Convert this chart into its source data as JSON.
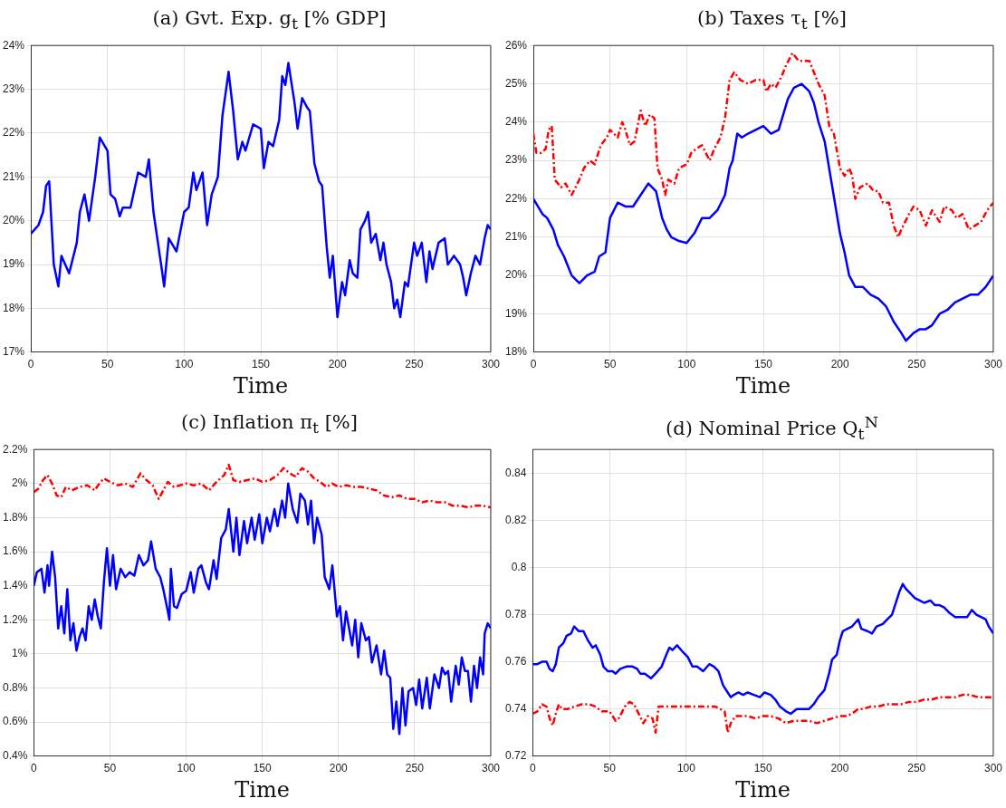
{
  "chart_data": [
    {
      "type": "line",
      "title": "(a) Gvt. Exp. g$_{t}$ [% GDP]",
      "xlabel": "Time",
      "xlim": [
        0,
        300
      ],
      "xticks": [
        0,
        50,
        100,
        150,
        200,
        250,
        300
      ],
      "ylim": [
        17,
        24
      ],
      "yticks": [
        {
          "value": 17,
          "label": "17%"
        },
        {
          "value": 18,
          "label": "18%"
        },
        {
          "value": 19,
          "label": "19%"
        },
        {
          "value": 20,
          "label": "20%"
        },
        {
          "value": 21,
          "label": "21%"
        },
        {
          "value": 22,
          "label": "22%"
        },
        {
          "value": 23,
          "label": "23%"
        },
        {
          "value": 24,
          "label": "24%"
        }
      ],
      "grid": true,
      "legend": false,
      "marker": "none",
      "series": [
        {
          "color": "#0000ff",
          "line_style": "solid",
          "x": [
            0,
            5,
            8,
            10,
            12,
            15,
            18,
            20,
            25,
            30,
            32,
            35,
            38,
            42,
            45,
            50,
            52,
            55,
            58,
            60,
            65,
            70,
            75,
            77,
            80,
            85,
            87,
            90,
            95,
            100,
            103,
            106,
            108,
            112,
            115,
            118,
            122,
            125,
            129,
            132,
            135,
            138,
            140,
            145,
            150,
            152,
            155,
            158,
            162,
            164,
            166,
            168,
            172,
            174,
            177,
            180,
            182,
            185,
            188,
            190,
            193,
            195,
            197,
            200,
            203,
            205,
            208,
            210,
            213,
            215,
            218,
            220,
            222,
            225,
            228,
            230,
            232,
            235,
            237,
            239,
            241,
            244,
            246,
            250,
            252,
            255,
            258,
            260,
            262,
            266,
            270,
            272,
            276,
            280,
            282,
            284,
            287,
            290,
            293,
            296,
            298,
            300
          ],
          "values": [
            19.7,
            19.9,
            20.2,
            20.8,
            20.9,
            19.0,
            18.5,
            19.2,
            18.8,
            19.5,
            20.2,
            20.6,
            20.0,
            21.0,
            21.9,
            21.6,
            20.6,
            20.5,
            20.1,
            20.3,
            20.3,
            21.1,
            21.0,
            21.4,
            20.2,
            19.0,
            18.5,
            19.6,
            19.3,
            20.2,
            20.3,
            21.1,
            20.7,
            21.1,
            19.9,
            20.6,
            21.0,
            22.4,
            23.4,
            22.5,
            21.4,
            21.8,
            21.6,
            22.2,
            22.1,
            21.2,
            21.8,
            21.7,
            22.3,
            23.3,
            23.1,
            23.6,
            22.7,
            22.1,
            22.8,
            22.6,
            22.5,
            21.3,
            20.9,
            20.8,
            19.4,
            18.7,
            19.2,
            17.8,
            18.6,
            18.3,
            19.1,
            18.8,
            18.7,
            19.8,
            20.0,
            20.2,
            19.5,
            19.7,
            19.1,
            19.5,
            19.0,
            18.6,
            18.0,
            18.2,
            17.8,
            18.6,
            18.5,
            19.5,
            19.2,
            19.5,
            18.6,
            19.3,
            18.9,
            19.5,
            19.6,
            19.0,
            19.2,
            19.0,
            18.7,
            18.3,
            18.8,
            19.2,
            19.0,
            19.6,
            19.9,
            19.8
          ]
        }
      ]
    },
    {
      "type": "line",
      "title": "(b) Taxes τ$_{t}$ [%]",
      "xlabel": "Time",
      "xlim": [
        0,
        300
      ],
      "xticks": [
        0,
        50,
        100,
        150,
        200,
        250,
        300
      ],
      "ylim": [
        18,
        26
      ],
      "yticks": [
        {
          "value": 18,
          "label": "18%"
        },
        {
          "value": 19,
          "label": "19%"
        },
        {
          "value": 20,
          "label": "20%"
        },
        {
          "value": 21,
          "label": "21%"
        },
        {
          "value": 22,
          "label": "22%"
        },
        {
          "value": 23,
          "label": "23%"
        },
        {
          "value": 24,
          "label": "24%"
        },
        {
          "value": 25,
          "label": "25%"
        },
        {
          "value": 26,
          "label": "26%"
        }
      ],
      "grid": true,
      "legend": false,
      "marker": "none",
      "series": [
        {
          "color": "#0000ff",
          "line_style": "solid",
          "x": [
            0,
            3,
            6,
            9,
            13,
            16,
            20,
            22,
            25,
            30,
            35,
            40,
            43,
            47,
            50,
            55,
            60,
            65,
            70,
            75,
            80,
            84,
            87,
            90,
            95,
            100,
            105,
            110,
            115,
            120,
            125,
            128,
            130,
            133,
            136,
            140,
            145,
            150,
            155,
            160,
            163,
            166,
            170,
            175,
            180,
            183,
            186,
            190,
            195,
            200,
            203,
            206,
            210,
            215,
            220,
            225,
            230,
            235,
            240,
            243,
            248,
            252,
            256,
            260,
            265,
            270,
            275,
            280,
            285,
            290,
            295,
            300
          ],
          "values": [
            22.0,
            21.8,
            21.6,
            21.5,
            21.2,
            20.8,
            20.5,
            20.3,
            20.0,
            19.8,
            20.0,
            20.1,
            20.5,
            20.6,
            21.5,
            21.9,
            21.8,
            21.8,
            22.1,
            22.4,
            22.2,
            21.5,
            21.2,
            21.0,
            20.9,
            20.85,
            21.1,
            21.5,
            21.5,
            21.7,
            22.1,
            22.8,
            23.0,
            23.7,
            23.6,
            23.7,
            23.8,
            23.9,
            23.7,
            23.8,
            24.2,
            24.6,
            24.9,
            25.0,
            24.8,
            24.5,
            24.0,
            23.5,
            22.3,
            21.1,
            20.6,
            20.0,
            19.7,
            19.7,
            19.5,
            19.4,
            19.2,
            18.8,
            18.5,
            18.3,
            18.5,
            18.6,
            18.6,
            18.7,
            19.0,
            19.1,
            19.3,
            19.4,
            19.5,
            19.5,
            19.7,
            20.0
          ]
        },
        {
          "color": "#ff0000",
          "line_style": "dashed",
          "x": [
            0,
            2,
            5,
            8,
            10,
            12,
            14,
            18,
            21,
            25,
            30,
            33,
            37,
            40,
            44,
            48,
            50,
            55,
            58,
            60,
            63,
            66,
            70,
            73,
            76,
            79,
            81,
            84,
            86,
            88,
            92,
            95,
            100,
            103,
            106,
            110,
            115,
            118,
            122,
            125,
            128,
            131,
            135,
            140,
            145,
            150,
            152,
            155,
            158,
            162,
            165,
            169,
            173,
            176,
            180,
            183,
            186,
            190,
            193,
            196,
            200,
            203,
            206,
            208,
            210,
            213,
            218,
            222,
            225,
            228,
            232,
            235,
            238,
            240,
            245,
            248,
            252,
            256,
            260,
            265,
            268,
            273,
            276,
            280,
            284,
            288,
            292,
            296,
            300
          ],
          "values": [
            23.7,
            23.2,
            23.2,
            23.3,
            23.8,
            23.9,
            22.5,
            22.3,
            22.4,
            22.1,
            22.5,
            22.8,
            23.0,
            22.9,
            23.4,
            23.6,
            23.8,
            23.6,
            24.0,
            23.8,
            23.4,
            23.5,
            24.3,
            23.9,
            24.2,
            24.1,
            22.8,
            22.5,
            22.1,
            22.5,
            22.4,
            22.8,
            22.9,
            23.2,
            23.3,
            23.4,
            23.0,
            23.3,
            23.6,
            24.1,
            25.1,
            25.3,
            25.1,
            25.0,
            25.1,
            25.1,
            24.8,
            25.0,
            24.9,
            25.2,
            25.5,
            25.8,
            25.6,
            25.6,
            25.6,
            25.3,
            25.0,
            24.7,
            23.9,
            23.7,
            22.8,
            22.6,
            22.8,
            22.6,
            22.0,
            22.3,
            22.4,
            22.2,
            22.2,
            21.9,
            21.9,
            21.3,
            21.0,
            21.2,
            21.6,
            21.8,
            21.7,
            21.3,
            21.7,
            21.4,
            21.8,
            21.7,
            21.5,
            21.6,
            21.2,
            21.3,
            21.4,
            21.7,
            21.9
          ]
        }
      ]
    },
    {
      "type": "line",
      "title": "(c) Inflation π$_{t}$ [%]",
      "xlabel": "Time",
      "xlim": [
        0,
        300
      ],
      "xticks": [
        0,
        50,
        100,
        150,
        200,
        250,
        300
      ],
      "ylim": [
        0.4,
        2.2
      ],
      "yticks": [
        {
          "value": 0.4,
          "label": "0.4%"
        },
        {
          "value": 0.6,
          "label": "0.6%"
        },
        {
          "value": 0.8,
          "label": "0.8%"
        },
        {
          "value": 1,
          "label": "1%"
        },
        {
          "value": 1.2,
          "label": "1.2%"
        },
        {
          "value": 1.4,
          "label": "1.4%"
        },
        {
          "value": 1.6,
          "label": "1.6%"
        },
        {
          "value": 1.8,
          "label": "1.8%"
        },
        {
          "value": 2,
          "label": "2%"
        },
        {
          "value": 2.2,
          "label": "2.2%"
        }
      ],
      "grid": true,
      "legend": false,
      "marker": "none",
      "series": [
        {
          "color": "#0000ff",
          "line_style": "solid",
          "x": [
            0,
            2,
            5,
            7,
            9,
            10,
            12,
            14,
            16,
            18,
            20,
            22,
            24,
            26,
            28,
            30,
            32,
            34,
            36,
            38,
            40,
            42,
            44,
            46,
            48,
            50,
            52,
            54,
            57,
            60,
            63,
            66,
            69,
            72,
            75,
            77,
            80,
            83,
            85,
            88,
            89,
            90,
            92,
            94,
            97,
            100,
            103,
            105,
            108,
            110,
            113,
            115,
            118,
            120,
            123,
            126,
            128,
            131,
            133,
            135,
            138,
            140,
            143,
            145,
            148,
            150,
            153,
            155,
            158,
            160,
            163,
            165,
            167,
            170,
            173,
            175,
            178,
            180,
            182,
            184,
            186,
            189,
            191,
            194,
            196,
            199,
            201,
            203,
            205,
            207,
            209,
            211,
            213,
            215,
            218,
            220,
            222,
            225,
            228,
            230,
            232,
            234,
            236,
            238,
            240,
            242,
            244,
            246,
            249,
            251,
            253,
            255,
            258,
            260,
            263,
            266,
            268,
            270,
            272,
            274,
            277,
            279,
            281,
            283,
            285,
            287,
            289,
            291,
            293,
            295,
            296,
            298,
            300
          ],
          "values": [
            1.4,
            1.48,
            1.5,
            1.36,
            1.52,
            1.4,
            1.6,
            1.45,
            1.15,
            1.28,
            1.12,
            1.38,
            1.08,
            1.18,
            1.02,
            1.1,
            1.15,
            1.08,
            1.28,
            1.2,
            1.32,
            1.22,
            1.15,
            1.42,
            1.62,
            1.4,
            1.58,
            1.38,
            1.5,
            1.45,
            1.48,
            1.46,
            1.58,
            1.52,
            1.55,
            1.66,
            1.5,
            1.45,
            1.38,
            1.25,
            1.2,
            1.5,
            1.28,
            1.27,
            1.35,
            1.37,
            1.48,
            1.36,
            1.5,
            1.52,
            1.42,
            1.38,
            1.55,
            1.44,
            1.68,
            1.73,
            1.85,
            1.6,
            1.8,
            1.58,
            1.78,
            1.65,
            1.8,
            1.67,
            1.82,
            1.65,
            1.8,
            1.72,
            1.85,
            1.75,
            1.9,
            1.8,
            2.0,
            1.85,
            1.77,
            1.94,
            1.9,
            1.76,
            1.9,
            1.65,
            1.8,
            1.7,
            1.45,
            1.38,
            1.52,
            1.22,
            1.28,
            1.08,
            1.25,
            1.15,
            1.05,
            1.2,
            0.98,
            1.18,
            1.08,
            1.1,
            0.95,
            1.05,
            0.88,
            1.02,
            0.88,
            0.86,
            0.56,
            0.72,
            0.53,
            0.8,
            0.58,
            0.78,
            0.8,
            0.7,
            0.85,
            0.68,
            0.86,
            0.68,
            0.88,
            0.8,
            0.92,
            0.88,
            0.9,
            0.72,
            0.93,
            0.82,
            0.98,
            0.9,
            0.9,
            0.72,
            0.93,
            0.8,
            0.98,
            0.88,
            1.12,
            1.18,
            1.15
          ]
        },
        {
          "color": "#ff0000",
          "line_style": "dashed",
          "x": [
            0,
            3,
            6,
            9,
            12,
            15,
            18,
            21,
            25,
            30,
            35,
            40,
            43,
            46,
            50,
            55,
            60,
            65,
            70,
            74,
            78,
            82,
            85,
            88,
            92,
            96,
            100,
            105,
            110,
            115,
            120,
            125,
            128,
            131,
            135,
            140,
            145,
            150,
            155,
            160,
            164,
            168,
            172,
            176,
            180,
            184,
            188,
            192,
            196,
            200,
            205,
            210,
            215,
            220,
            225,
            230,
            235,
            240,
            245,
            250,
            255,
            260,
            265,
            270,
            275,
            280,
            285,
            290,
            295,
            300
          ],
          "values": [
            1.95,
            1.97,
            2.02,
            2.05,
            2.0,
            1.93,
            1.92,
            1.98,
            1.96,
            1.98,
            1.99,
            1.96,
            2.0,
            2.03,
            2.01,
            1.99,
            2.0,
            1.98,
            2.06,
            2.02,
            1.99,
            1.91,
            1.96,
            2.01,
            1.98,
            1.99,
            2.0,
            1.99,
            2.0,
            1.96,
            2.01,
            2.05,
            2.11,
            2.02,
            2.01,
            2.02,
            2.03,
            2.01,
            2.02,
            2.05,
            2.09,
            2.06,
            2.04,
            2.09,
            2.07,
            2.03,
            2.01,
            1.98,
            2.0,
            1.98,
            1.99,
            1.98,
            1.98,
            1.97,
            1.96,
            1.93,
            1.92,
            1.93,
            1.91,
            1.91,
            1.89,
            1.9,
            1.89,
            1.89,
            1.87,
            1.87,
            1.86,
            1.87,
            1.87,
            1.86
          ]
        }
      ]
    },
    {
      "type": "line",
      "title": "(d) Nominal Price Q$_{t}$$^{N}$",
      "xlabel": "Time",
      "xlim": [
        0,
        300
      ],
      "xticks": [
        0,
        50,
        100,
        150,
        200,
        250,
        300
      ],
      "ylim": [
        0.72,
        0.85
      ],
      "yticks": [
        0.72,
        0.74,
        0.76,
        0.78,
        0.8,
        0.82,
        0.84
      ],
      "grid": true,
      "legend": false,
      "marker": "none",
      "series": [
        {
          "color": "#0000ff",
          "line_style": "solid",
          "x": [
            0,
            3,
            6,
            9,
            11,
            13,
            15,
            17,
            20,
            22,
            25,
            27,
            30,
            33,
            36,
            39,
            41,
            44,
            46,
            49,
            52,
            54,
            57,
            61,
            65,
            68,
            70,
            73,
            77,
            80,
            84,
            87,
            89,
            91,
            94,
            98,
            101,
            104,
            107,
            111,
            115,
            118,
            121,
            124,
            127,
            129,
            131,
            134,
            137,
            140,
            144,
            148,
            151,
            155,
            158,
            161,
            165,
            168,
            172,
            176,
            180,
            183,
            186,
            190,
            193,
            195,
            198,
            200,
            202,
            205,
            208,
            212,
            214,
            218,
            221,
            224,
            228,
            231,
            234,
            237,
            239,
            241,
            243,
            246,
            249,
            252,
            255,
            259,
            262,
            265,
            268,
            271,
            275,
            279,
            283,
            286,
            289,
            292,
            295,
            297,
            300
          ],
          "values": [
            0.759,
            0.759,
            0.76,
            0.76,
            0.757,
            0.756,
            0.759,
            0.766,
            0.768,
            0.771,
            0.772,
            0.775,
            0.773,
            0.773,
            0.769,
            0.766,
            0.767,
            0.763,
            0.758,
            0.756,
            0.756,
            0.755,
            0.757,
            0.758,
            0.758,
            0.757,
            0.755,
            0.755,
            0.753,
            0.755,
            0.758,
            0.763,
            0.766,
            0.765,
            0.767,
            0.764,
            0.762,
            0.758,
            0.758,
            0.756,
            0.759,
            0.758,
            0.756,
            0.75,
            0.747,
            0.745,
            0.746,
            0.747,
            0.746,
            0.747,
            0.746,
            0.745,
            0.747,
            0.746,
            0.744,
            0.741,
            0.739,
            0.738,
            0.74,
            0.74,
            0.74,
            0.742,
            0.745,
            0.748,
            0.755,
            0.761,
            0.763,
            0.769,
            0.773,
            0.774,
            0.775,
            0.778,
            0.774,
            0.773,
            0.772,
            0.775,
            0.776,
            0.778,
            0.78,
            0.786,
            0.79,
            0.793,
            0.791,
            0.789,
            0.787,
            0.786,
            0.785,
            0.786,
            0.784,
            0.784,
            0.783,
            0.781,
            0.779,
            0.779,
            0.779,
            0.782,
            0.78,
            0.779,
            0.778,
            0.775,
            0.772
          ]
        },
        {
          "color": "#ff0000",
          "line_style": "dashed",
          "x": [
            0,
            3,
            6,
            9,
            11,
            13,
            15,
            17,
            19,
            23,
            27,
            32,
            37,
            41,
            45,
            50,
            54,
            56,
            60,
            63,
            66,
            69,
            72,
            75,
            78,
            80,
            82,
            86,
            90,
            95,
            100,
            105,
            110,
            115,
            119,
            125,
            127,
            129,
            132,
            136,
            140,
            145,
            150,
            155,
            160,
            165,
            170,
            175,
            180,
            185,
            190,
            195,
            200,
            205,
            210,
            212,
            215,
            220,
            225,
            230,
            235,
            240,
            245,
            250,
            255,
            260,
            265,
            270,
            275,
            280,
            285,
            290,
            295,
            300
          ],
          "values": [
            0.738,
            0.739,
            0.742,
            0.741,
            0.736,
            0.733,
            0.738,
            0.742,
            0.74,
            0.74,
            0.741,
            0.742,
            0.742,
            0.741,
            0.739,
            0.739,
            0.735,
            0.736,
            0.741,
            0.743,
            0.742,
            0.738,
            0.734,
            0.737,
            0.736,
            0.73,
            0.741,
            0.741,
            0.741,
            0.741,
            0.741,
            0.741,
            0.741,
            0.741,
            0.741,
            0.739,
            0.73,
            0.734,
            0.737,
            0.737,
            0.737,
            0.736,
            0.737,
            0.737,
            0.736,
            0.734,
            0.735,
            0.735,
            0.735,
            0.734,
            0.735,
            0.736,
            0.737,
            0.737,
            0.739,
            0.74,
            0.74,
            0.741,
            0.741,
            0.742,
            0.742,
            0.742,
            0.743,
            0.743,
            0.744,
            0.744,
            0.745,
            0.745,
            0.745,
            0.746,
            0.746,
            0.745,
            0.745,
            0.745
          ]
        }
      ]
    }
  ]
}
